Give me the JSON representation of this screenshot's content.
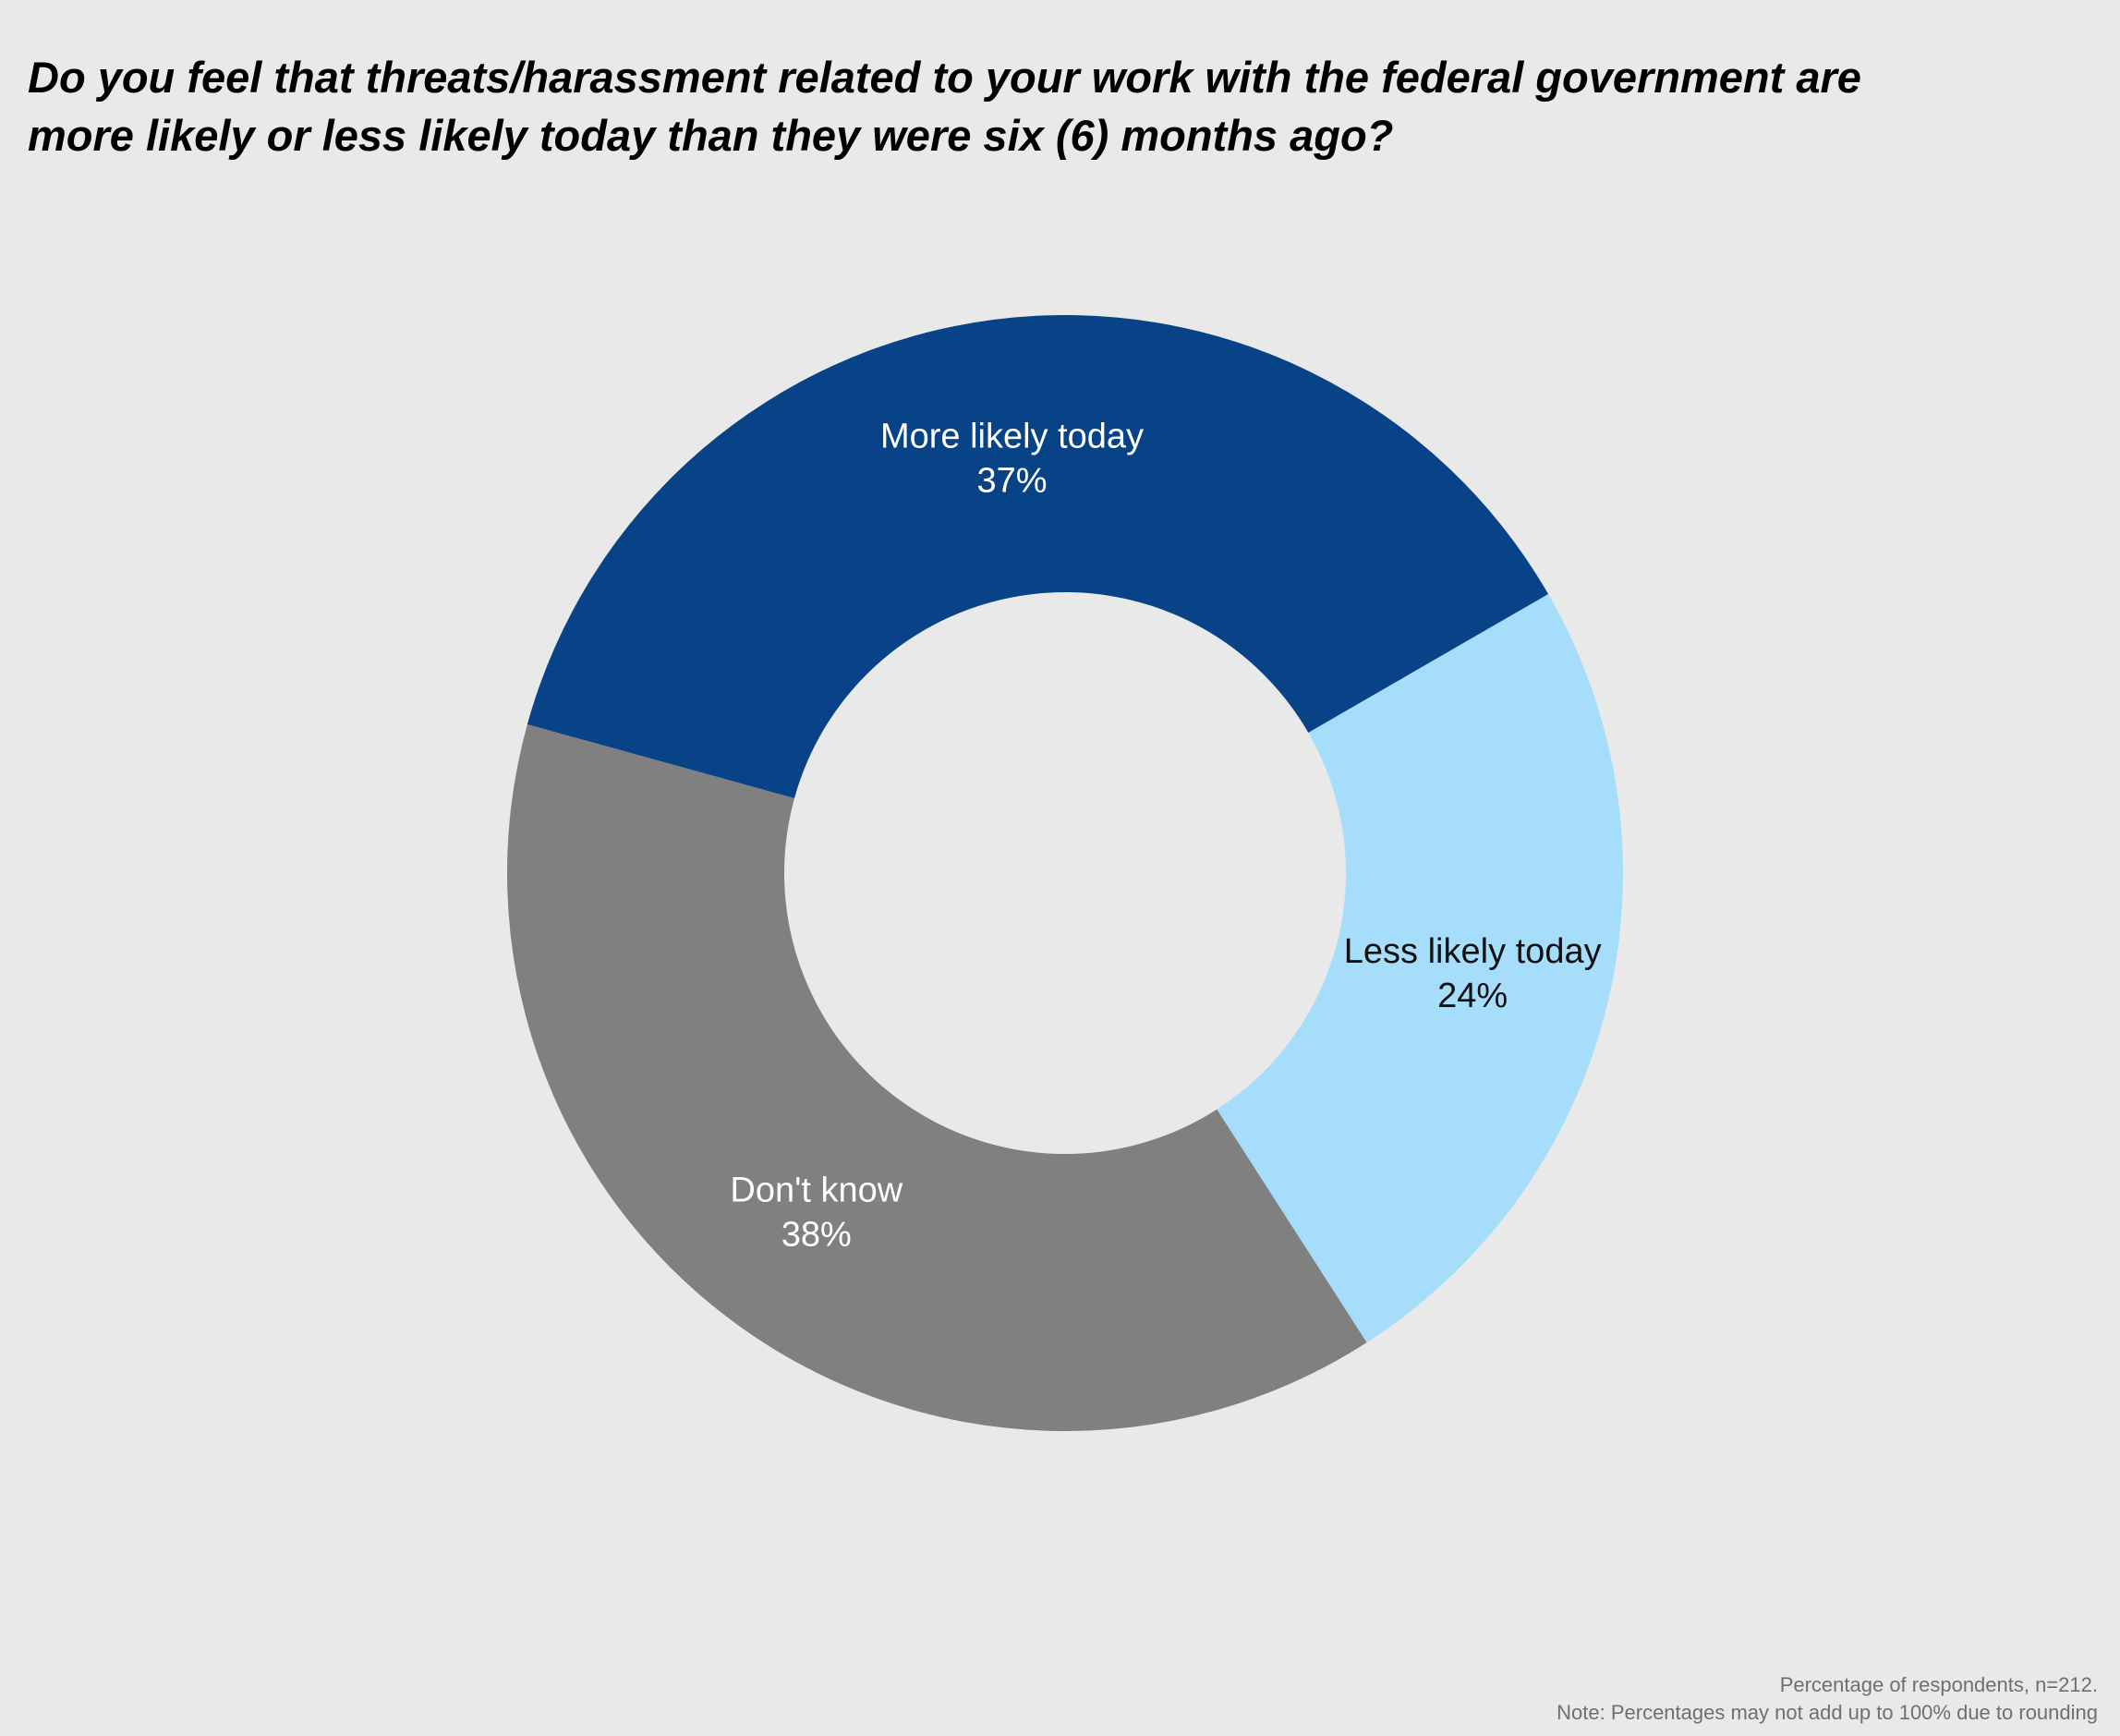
{
  "chart_data": {
    "type": "pie",
    "variant": "donut",
    "title_lines": [
      "Do you feel that threats/harassment related to your work with the federal government are",
      "more likely or less likely today than they were six (6) months ago?"
    ],
    "slices": [
      {
        "label": "Less likely today",
        "value": 24,
        "value_label": "24%",
        "color": "#a6ddfa",
        "text_color": "#111111"
      },
      {
        "label": "Don't know",
        "value": 38,
        "value_label": "38%",
        "color": "#808080",
        "text_color": "#ffffff"
      },
      {
        "label": "More likely today",
        "value": 37,
        "value_label": "37%",
        "color": "#084287",
        "text_color": "#ffffff"
      }
    ],
    "legend": "none",
    "notes": [
      "Percentage of respondents, n=212.",
      "Note: Percentages may not add up to 100% due to rounding"
    ]
  },
  "colors": {
    "background": "#e9e9e9"
  }
}
